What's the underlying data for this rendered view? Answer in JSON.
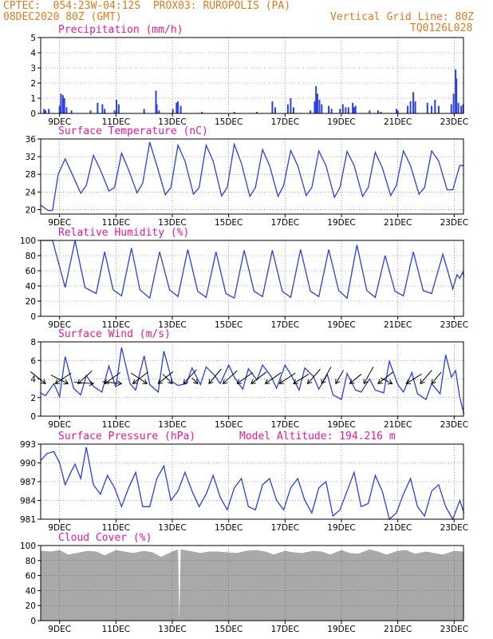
{
  "header": {
    "station": "CPTEC:  054:23W-04:12S  PROX03: RUROPOLIS (PA)",
    "date": "08DEC2020 80Z (GMT)",
    "grid_note": "Vertical Grid Line: 80Z",
    "code": "TQ0126L028"
  },
  "colors": {
    "header": "#e07a1f",
    "title": "#e8179b",
    "series": "#2a3fe0",
    "cloud": "#a9a9a9",
    "arrow": "#000000"
  },
  "x_ticks": [
    "9DEC",
    "11DEC",
    "13DEC",
    "15DEC",
    "17DEC",
    "19DEC",
    "21DEC",
    "23DEC"
  ],
  "panels": {
    "precip": {
      "title": "Precipitation (mm/h)"
    },
    "temp": {
      "title": "Surface Temperature (nC)"
    },
    "rh": {
      "title": "Relative Humidity (%)"
    },
    "wind": {
      "title": "Surface Wind (m/s)"
    },
    "pressure": {
      "title": "Surface Pressure (hPa)",
      "note": "Model Altitude: 194.216 m"
    },
    "cloud": {
      "title": "Cloud Cover (%)"
    }
  },
  "chart_data": [
    {
      "type": "bar",
      "name": "precipitation",
      "ylim": [
        0,
        5
      ],
      "yticks": [
        0,
        1,
        2,
        3,
        4,
        5
      ],
      "x_range_days": [
        8.33,
        23.0
      ],
      "points": [
        [
          8.45,
          0.3
        ],
        [
          8.5,
          0.2
        ],
        [
          8.62,
          0.3
        ],
        [
          9.0,
          0.5
        ],
        [
          9.05,
          1.3
        ],
        [
          9.12,
          1.2
        ],
        [
          9.17,
          1.0
        ],
        [
          9.25,
          0.4
        ],
        [
          9.42,
          0.2
        ],
        [
          10.1,
          0.2
        ],
        [
          10.35,
          0.7
        ],
        [
          10.52,
          0.6
        ],
        [
          10.6,
          0.3
        ],
        [
          10.95,
          0.2
        ],
        [
          11.02,
          0.9
        ],
        [
          11.1,
          0.6
        ],
        [
          12.0,
          0.3
        ],
        [
          12.42,
          1.5
        ],
        [
          12.45,
          0.6
        ],
        [
          12.53,
          0.2
        ],
        [
          13.02,
          0.3
        ],
        [
          13.15,
          0.7
        ],
        [
          13.2,
          0.8
        ],
        [
          13.3,
          0.5
        ],
        [
          14.05,
          0.1
        ],
        [
          15.2,
          0.1
        ],
        [
          16.0,
          0.1
        ],
        [
          16.55,
          0.8
        ],
        [
          16.65,
          0.4
        ],
        [
          17.1,
          0.6
        ],
        [
          17.2,
          1.0
        ],
        [
          17.3,
          0.4
        ],
        [
          17.9,
          0.2
        ],
        [
          18.05,
          0.8
        ],
        [
          18.1,
          1.8
        ],
        [
          18.15,
          1.3
        ],
        [
          18.22,
          0.9
        ],
        [
          18.3,
          0.6
        ],
        [
          18.55,
          0.5
        ],
        [
          18.65,
          0.3
        ],
        [
          18.95,
          0.3
        ],
        [
          19.05,
          0.6
        ],
        [
          19.15,
          0.4
        ],
        [
          19.25,
          0.4
        ],
        [
          19.4,
          0.7
        ],
        [
          19.45,
          0.4
        ],
        [
          19.5,
          0.5
        ],
        [
          20.0,
          0.2
        ],
        [
          20.3,
          0.2
        ],
        [
          20.4,
          0.1
        ],
        [
          20.95,
          0.3
        ],
        [
          21.0,
          0.2
        ],
        [
          21.35,
          0.5
        ],
        [
          21.45,
          0.8
        ],
        [
          21.55,
          1.4
        ],
        [
          21.62,
          0.8
        ],
        [
          22.05,
          0.7
        ],
        [
          22.2,
          0.5
        ],
        [
          22.32,
          0.9
        ],
        [
          22.45,
          0.5
        ],
        [
          22.9,
          0.6
        ],
        [
          22.98,
          1.3
        ],
        [
          23.05,
          2.9
        ],
        [
          23.08,
          2.3
        ],
        [
          23.15,
          0.7
        ],
        [
          23.25,
          0.5
        ],
        [
          23.32,
          0.6
        ]
      ]
    },
    {
      "type": "line",
      "name": "surface_temperature",
      "ylim": [
        19,
        36
      ],
      "yticks": [
        20,
        24,
        28,
        32,
        36
      ],
      "x": [
        8.33,
        8.6,
        8.75,
        8.95,
        9.2,
        9.45,
        9.75,
        9.95,
        10.2,
        10.45,
        10.75,
        10.95,
        11.2,
        11.45,
        11.75,
        11.95,
        12.2,
        12.45,
        12.75,
        12.95,
        13.2,
        13.45,
        13.75,
        13.95,
        14.2,
        14.45,
        14.75,
        14.95,
        15.2,
        15.45,
        15.75,
        15.95,
        16.2,
        16.45,
        16.75,
        16.95,
        17.2,
        17.45,
        17.75,
        17.95,
        18.2,
        18.45,
        18.75,
        18.95,
        19.2,
        19.45,
        19.75,
        19.95,
        20.2,
        20.45,
        20.75,
        20.95,
        21.2,
        21.45,
        21.75,
        21.95,
        22.2,
        22.45,
        22.75,
        22.95,
        23.2,
        23.35
      ],
      "y": [
        21,
        19.8,
        19.8,
        28,
        31.5,
        28,
        23.7,
        25.5,
        32.3,
        29,
        24.2,
        25,
        32.8,
        29,
        23.8,
        26,
        35.3,
        30,
        23.4,
        25,
        34.6,
        31,
        23.5,
        25,
        34.6,
        31,
        23.1,
        25,
        34.8,
        30.5,
        23,
        25,
        33.6,
        30,
        23,
        25.5,
        33.4,
        30,
        23.2,
        25,
        33.3,
        30,
        22.8,
        25,
        33.2,
        30,
        23,
        25,
        33,
        29.5,
        23.2,
        25.5,
        33.3,
        30,
        23.5,
        25,
        33.3,
        31,
        24.5,
        24.5,
        30,
        30
      ]
    },
    {
      "type": "line",
      "name": "relative_humidity",
      "ylim": [
        0,
        100
      ],
      "yticks": [
        0,
        20,
        40,
        60,
        80,
        100
      ],
      "x": [
        8.33,
        8.75,
        9.2,
        9.55,
        9.9,
        10.3,
        10.6,
        10.9,
        11.2,
        11.55,
        11.85,
        12.2,
        12.55,
        12.9,
        13.2,
        13.55,
        13.9,
        14.2,
        14.55,
        14.9,
        15.2,
        15.55,
        15.9,
        16.2,
        16.55,
        16.9,
        17.2,
        17.55,
        17.9,
        18.2,
        18.55,
        18.9,
        19.2,
        19.55,
        19.9,
        20.2,
        20.55,
        20.9,
        21.2,
        21.55,
        21.9,
        22.2,
        22.6,
        22.95,
        23.1,
        23.2,
        23.3,
        23.35
      ],
      "y": [
        100,
        100,
        38,
        100,
        38,
        30,
        85,
        35,
        27,
        90,
        35,
        24,
        85,
        35,
        26,
        88,
        33,
        25,
        85,
        30,
        24,
        87,
        33,
        26,
        87,
        33,
        25,
        88,
        33,
        26,
        88,
        34,
        24,
        94,
        34,
        25,
        80,
        33,
        27,
        85,
        34,
        30,
        82,
        36,
        55,
        50,
        58,
        53
      ]
    },
    {
      "type": "line",
      "name": "surface_wind_speed",
      "ylim": [
        0,
        8
      ],
      "yticks": [
        0,
        2,
        4,
        6,
        8
      ],
      "x": [
        8.33,
        8.5,
        8.8,
        9.0,
        9.2,
        9.5,
        9.75,
        9.95,
        10.2,
        10.5,
        10.75,
        11.0,
        11.2,
        11.5,
        11.7,
        12.0,
        12.2,
        12.5,
        12.7,
        13.0,
        13.2,
        13.5,
        13.7,
        14.0,
        14.2,
        14.5,
        14.7,
        15.0,
        15.2,
        15.5,
        15.7,
        16.0,
        16.2,
        16.5,
        16.7,
        17.0,
        17.2,
        17.5,
        17.7,
        18.0,
        18.2,
        18.5,
        18.7,
        19.0,
        19.2,
        19.5,
        19.7,
        20.0,
        20.2,
        20.5,
        20.7,
        21.0,
        21.2,
        21.5,
        21.7,
        22.0,
        22.2,
        22.5,
        22.7,
        22.9,
        23.05,
        23.2,
        23.35
      ],
      "y": [
        2.5,
        2.2,
        3.5,
        2.1,
        6.4,
        3.0,
        2.3,
        4.4,
        3.2,
        2.6,
        5.4,
        3.1,
        7.4,
        3.5,
        2.8,
        6.5,
        3.4,
        2.6,
        7.0,
        3.7,
        3.3,
        3.5,
        5.2,
        3.4,
        5.3,
        4.4,
        3.5,
        5.5,
        4.2,
        2.9,
        5.1,
        3.9,
        5.5,
        4.3,
        3.0,
        5.5,
        4.5,
        2.8,
        5.2,
        4.3,
        2.9,
        4.5,
        2.3,
        1.8,
        4.6,
        2.8,
        2.6,
        4.0,
        2.8,
        2.5,
        5.9,
        3.4,
        2.6,
        4.7,
        2.4,
        1.8,
        3.5,
        2.4,
        6.6,
        4.2,
        4.9,
        2.0,
        0.2
      ]
    },
    {
      "type": "line",
      "name": "surface_pressure",
      "ylim": [
        981,
        993
      ],
      "yticks": [
        981,
        984,
        987,
        990,
        993
      ],
      "x": [
        8.33,
        8.55,
        8.8,
        9.0,
        9.2,
        9.4,
        9.55,
        9.75,
        9.95,
        10.2,
        10.45,
        10.7,
        10.95,
        11.2,
        11.45,
        11.7,
        11.95,
        12.2,
        12.45,
        12.7,
        12.95,
        13.2,
        13.45,
        13.7,
        13.95,
        14.2,
        14.45,
        14.7,
        14.95,
        15.2,
        15.45,
        15.7,
        15.95,
        16.2,
        16.45,
        16.7,
        16.95,
        17.2,
        17.45,
        17.7,
        17.95,
        18.2,
        18.45,
        18.7,
        18.95,
        19.2,
        19.45,
        19.7,
        19.95,
        20.2,
        20.45,
        20.7,
        20.95,
        21.2,
        21.45,
        21.7,
        21.95,
        22.2,
        22.45,
        22.7,
        22.95,
        23.2,
        23.35
      ],
      "y": [
        990.4,
        991.5,
        991.8,
        990.0,
        986.5,
        988.5,
        989.8,
        987.5,
        992.5,
        986.5,
        985.0,
        988.0,
        986.0,
        983.0,
        986.0,
        988.5,
        983.0,
        983.0,
        987.5,
        989.5,
        984.0,
        985.5,
        988.5,
        985.5,
        983.0,
        985.0,
        988.0,
        984.5,
        982.5,
        986.0,
        987.5,
        983.0,
        982.5,
        986.5,
        987.5,
        984.0,
        982.5,
        986.0,
        987.5,
        984.0,
        982.0,
        986.0,
        987.0,
        981.5,
        982.5,
        985.5,
        988.5,
        983.0,
        983.5,
        988.0,
        985.5,
        981.0,
        982.0,
        985.0,
        987.5,
        983.0,
        981.5,
        985.5,
        986.5,
        983.0,
        981.0,
        984.0,
        982.0
      ]
    },
    {
      "type": "area",
      "name": "cloud_cover",
      "ylim": [
        0,
        100
      ],
      "yticks": [
        0,
        20,
        40,
        60,
        80,
        100
      ],
      "x": [
        8.33,
        8.7,
        9.0,
        9.3,
        9.6,
        10.0,
        10.3,
        10.6,
        11.0,
        11.3,
        11.6,
        12.0,
        12.3,
        12.6,
        13.0,
        13.2,
        13.25,
        13.3,
        13.6,
        14.0,
        14.3,
        14.6,
        15.0,
        15.3,
        15.6,
        16.0,
        16.3,
        16.6,
        17.0,
        17.3,
        17.6,
        18.0,
        18.3,
        18.6,
        19.0,
        19.3,
        19.6,
        20.0,
        20.3,
        20.6,
        21.0,
        21.3,
        21.6,
        22.0,
        22.3,
        22.6,
        23.0,
        23.35
      ],
      "y": [
        93,
        92,
        94,
        88,
        90,
        93,
        92,
        87,
        94,
        92,
        90,
        93,
        91,
        85,
        92,
        95,
        0,
        95,
        93,
        90,
        92,
        92,
        91,
        90,
        93,
        94,
        92,
        88,
        93,
        91,
        90,
        93,
        92,
        88,
        94,
        90,
        89,
        95,
        92,
        88,
        93,
        94,
        89,
        92,
        90,
        88,
        93,
        92
      ]
    },
    {
      "type": "vector",
      "name": "wind_arrows",
      "arrows": [
        [
          8.5,
          -1,
          0.8
        ],
        [
          8.85,
          0.9,
          0.6
        ],
        [
          9.3,
          -1.2,
          0.6
        ],
        [
          9.65,
          1.0,
          0.9
        ],
        [
          10.2,
          -1.3,
          0.1
        ],
        [
          10.6,
          1.4,
          1.0
        ],
        [
          11.2,
          -1.0,
          0.1
        ],
        [
          11.6,
          1.7,
          1.3
        ],
        [
          12.1,
          -1.2,
          0.8
        ],
        [
          12.5,
          1.6,
          1.3
        ],
        [
          13.0,
          -0.5,
          0.5
        ],
        [
          13.4,
          1.2,
          1.3
        ],
        [
          13.9,
          -0.3,
          0.3
        ],
        [
          14.3,
          1.0,
          1.2
        ],
        [
          14.8,
          1.3,
          1.2
        ],
        [
          15.3,
          1.4,
          1.0
        ],
        [
          15.8,
          1.3,
          1.0
        ],
        [
          16.3,
          1.0,
          0.7
        ],
        [
          16.8,
          0.9,
          0.6
        ],
        [
          17.3,
          0.8,
          0.5
        ],
        [
          17.8,
          0.7,
          0.8
        ],
        [
          18.3,
          0.5,
          0.9
        ],
        [
          18.8,
          0.4,
          0.7
        ],
        [
          19.3,
          0.6,
          0.5
        ],
        [
          19.8,
          0.5,
          0.9
        ],
        [
          20.3,
          0.9,
          0.7
        ],
        [
          20.8,
          -0.6,
          0.3
        ],
        [
          21.3,
          0.8,
          0.5
        ],
        [
          21.8,
          0.6,
          0.7
        ],
        [
          22.2,
          0.5,
          0.6
        ]
      ]
    }
  ]
}
